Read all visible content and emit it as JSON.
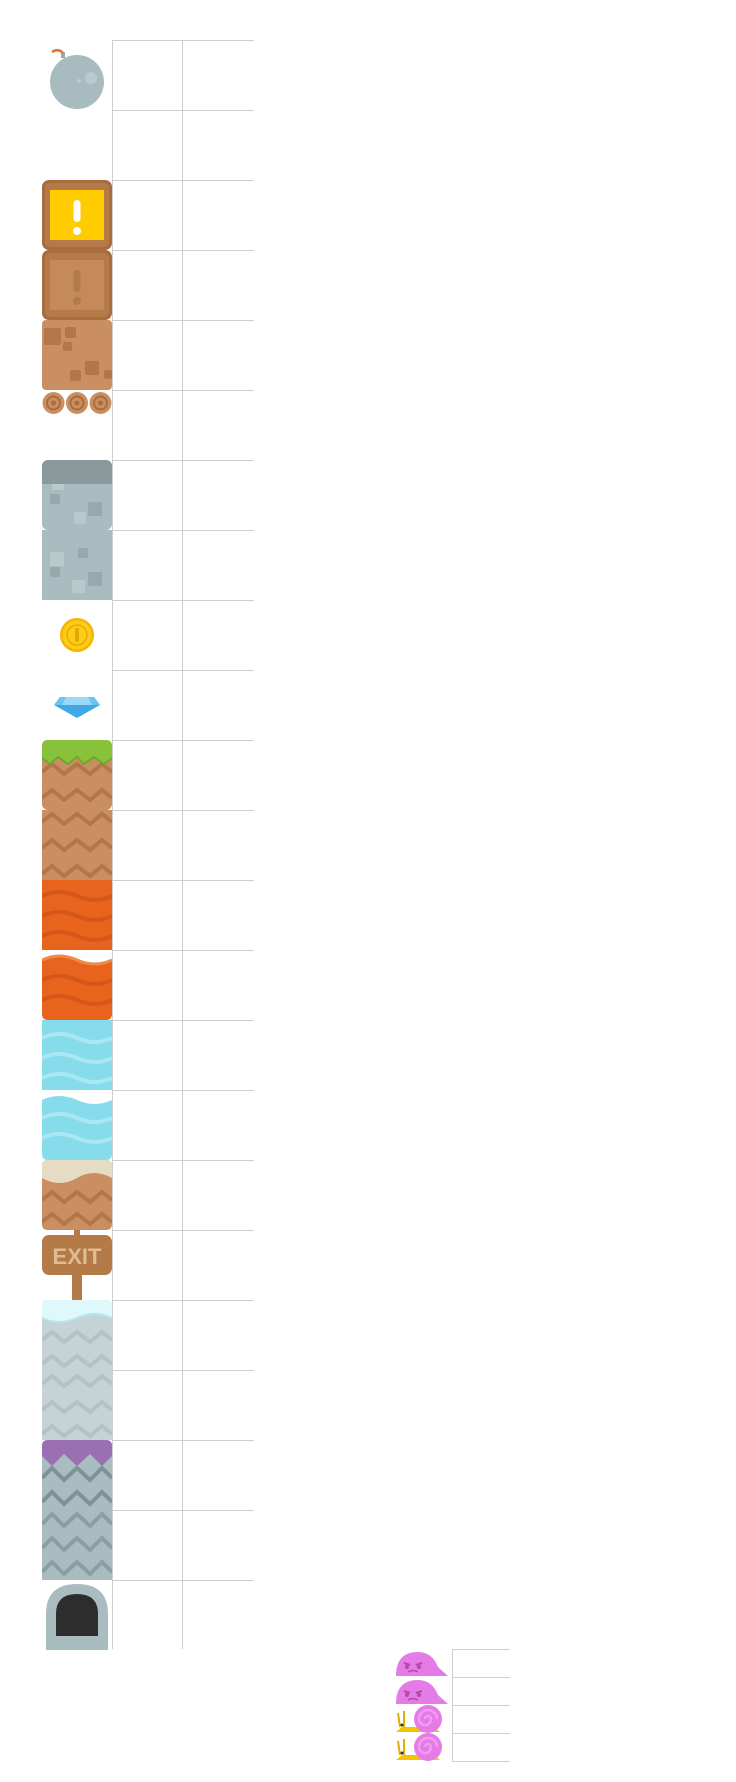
{
  "tileset": {
    "tiles": [
      {
        "icon": "bomb-icon"
      },
      {
        "icon": "empty-slot"
      },
      {
        "icon": "exclamation-box-active-icon"
      },
      {
        "icon": "exclamation-box-used-icon"
      },
      {
        "icon": "dirt-block-icon"
      },
      {
        "icon": "log-bridge-icon"
      },
      {
        "icon": "stone-top-icon"
      },
      {
        "icon": "stone-block-icon"
      },
      {
        "icon": "coin-icon"
      },
      {
        "icon": "gem-icon"
      },
      {
        "icon": "grass-top-icon"
      },
      {
        "icon": "dirt-zigzag-icon"
      },
      {
        "icon": "lava-block-icon"
      },
      {
        "icon": "lava-top-icon"
      },
      {
        "icon": "water-block-icon"
      },
      {
        "icon": "water-top-icon"
      },
      {
        "icon": "sand-top-icon"
      },
      {
        "icon": "exit-sign-icon",
        "label": "EXIT"
      },
      {
        "icon": "snow-top-icon"
      },
      {
        "icon": "snow-block-icon"
      },
      {
        "icon": "purple-top-icon"
      },
      {
        "icon": "slate-block-icon"
      },
      {
        "icon": "door-icon"
      }
    ]
  },
  "enemies": [
    {
      "icon": "slime-icon"
    },
    {
      "icon": "slime-icon"
    },
    {
      "icon": "snail-icon"
    },
    {
      "icon": "snail-icon"
    }
  ],
  "colors": {
    "grid": "#cfcfcf",
    "wood": "#b2784a",
    "yellow": "#ffcc00",
    "dirt": "#c98e61",
    "stone": "#a9bcc0",
    "lava": "#e8631e",
    "water": "#86dcea",
    "grass": "#88c23a",
    "slime": "#e57be6"
  }
}
